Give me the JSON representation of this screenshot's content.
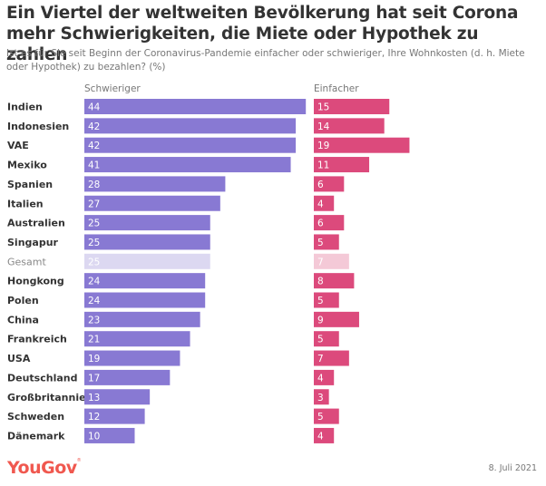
{
  "header": {
    "title": "Ein Viertel der weltweiten Bevölkerung hat seit Corona mehr Schwierigkeiten, die Miete oder Hypothek zu zahlen",
    "subtitle": "Ist es für Sie seit Beginn der Coronavirus-Pandemie einfacher oder schwieriger, Ihre Wohnkosten (d. h. Miete oder Hypothek) zu bezahlen? (%)"
  },
  "footer": {
    "logo": "YouGov",
    "date": "8. Juli 2021"
  },
  "colors": {
    "schwieriger": "#8879d3",
    "schwieriger_total": "#dcd8f1",
    "einfacher": "#dc4a7c",
    "einfacher_total": "#f4c9d7",
    "label": "#333333",
    "label_total": "#888888"
  },
  "chart_data": {
    "type": "bar",
    "orientation": "horizontal",
    "title": "Ein Viertel der weltweiten Bevölkerung hat seit Corona mehr Schwierigkeiten, die Miete oder Hypothek zu zahlen",
    "unit": "%",
    "categories": [
      "Indien",
      "Indonesien",
      "VAE",
      "Mexiko",
      "Spanien",
      "Italien",
      "Australien",
      "Singapur",
      "Gesamt",
      "Hongkong",
      "Polen",
      "China",
      "Frankreich",
      "USA",
      "Deutschland",
      "Großbritannien",
      "Schweden",
      "Dänemark"
    ],
    "highlight_category": "Gesamt",
    "series": [
      {
        "name": "Schwieriger",
        "values": [
          44,
          42,
          42,
          41,
          28,
          27,
          25,
          25,
          25,
          24,
          24,
          23,
          21,
          19,
          17,
          13,
          12,
          10
        ]
      },
      {
        "name": "Einfacher",
        "values": [
          15,
          14,
          19,
          11,
          6,
          4,
          6,
          5,
          7,
          8,
          5,
          9,
          5,
          7,
          4,
          3,
          5,
          4
        ]
      }
    ],
    "xlim": [
      0,
      45
    ],
    "grid": false,
    "legend": "column-headers-top"
  }
}
